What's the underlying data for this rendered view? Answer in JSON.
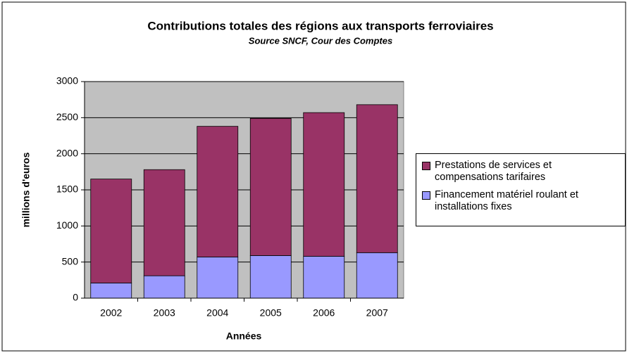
{
  "chart_data": {
    "type": "stacked_bar",
    "title": "Contributions totales des régions aux transports ferroviaires",
    "subtitle": "Source SNCF, Cour des Comptes",
    "x_label": "Années",
    "y_label": "millions d'euros",
    "categories": [
      "2002",
      "2003",
      "2004",
      "2005",
      "2006",
      "2007"
    ],
    "series": [
      {
        "name": "Prestations de services et compensations tarifaires",
        "color": "#993366",
        "values": [
          1440,
          1470,
          1810,
          1900,
          1990,
          2050
        ]
      },
      {
        "name": "Financement matériel roulant et installations fixes",
        "color": "#9999ff",
        "values": [
          210,
          310,
          570,
          590,
          580,
          630
        ]
      }
    ],
    "ylim": [
      0,
      3000
    ],
    "yticks": [
      0,
      500,
      1000,
      1500,
      2000,
      2500,
      3000
    ],
    "grid": true,
    "legend": "right"
  }
}
